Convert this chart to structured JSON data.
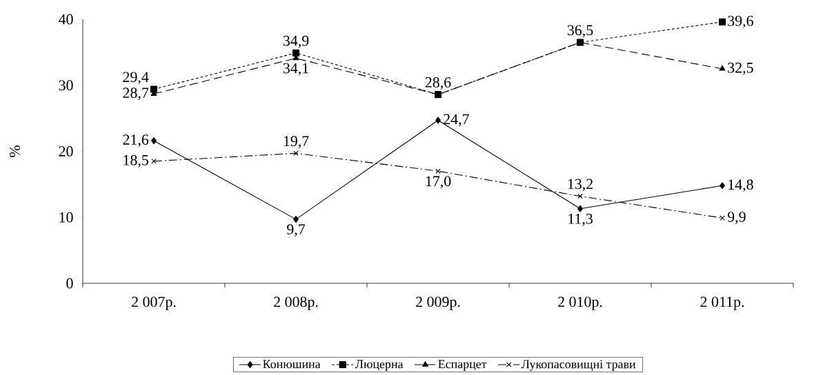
{
  "chart_data": {
    "type": "line",
    "ylabel": "%",
    "categories": [
      "2 007р.",
      "2 008р.",
      "2 009р.",
      "2 010р.",
      "2 011р."
    ],
    "ylim": [
      0,
      40
    ],
    "yticks": [
      0,
      10,
      20,
      30,
      40
    ],
    "grid": false,
    "legend": "bottom",
    "series": [
      {
        "name": "Конюшина",
        "color": "#000000",
        "marker": "diamond",
        "line_style": "solid",
        "values": [
          21.6,
          9.7,
          24.7,
          11.3,
          14.8
        ],
        "value_labels": [
          "21,6",
          "9,7",
          "24,7",
          "11,3",
          "14,8"
        ]
      },
      {
        "name": "Люцерна",
        "color": "#000000",
        "marker": "square",
        "line_style": "dotted",
        "values": [
          29.4,
          34.9,
          28.6,
          36.5,
          39.6
        ],
        "value_labels": [
          "29,4",
          "34,9",
          "28,6",
          "36,5",
          "39,6"
        ]
      },
      {
        "name": "Еспарцет",
        "color": "#000000",
        "marker": "triangle",
        "line_style": "dashed",
        "values": [
          28.7,
          34.1,
          28.6,
          36.5,
          32.5
        ],
        "value_labels": [
          "28,7",
          "34,1",
          null,
          null,
          "32,5"
        ]
      },
      {
        "name": "Лукопасовищні трави",
        "color": "#000000",
        "marker": "cross",
        "line_style": "dashdot",
        "values": [
          18.5,
          19.7,
          17.0,
          13.2,
          9.9
        ],
        "value_labels": [
          "18,5",
          "19,7",
          "17,0",
          "13,2",
          "9,9"
        ]
      }
    ]
  }
}
